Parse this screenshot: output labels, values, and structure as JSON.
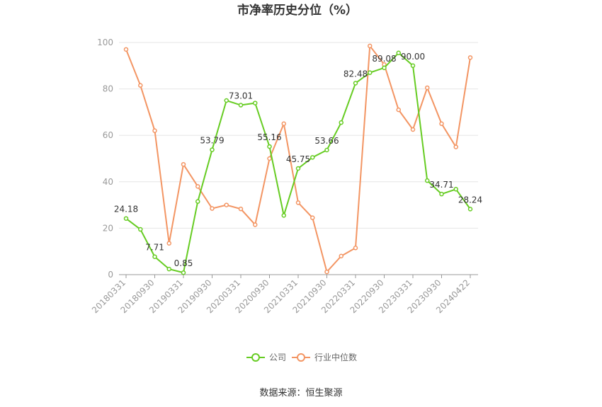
{
  "chart_data": {
    "type": "line",
    "title": "市净率历史分位（%）",
    "ylim": [
      0,
      100
    ],
    "yticks": [
      0,
      20,
      40,
      60,
      80,
      100
    ],
    "x": [
      "20180331",
      "20180630",
      "20180930",
      "20181231",
      "20190331",
      "20190630",
      "20190930",
      "20191231",
      "20200331",
      "20200630",
      "20200930",
      "20201231",
      "20210331",
      "20210630",
      "20210930",
      "20211231",
      "20220331",
      "20220630",
      "20220930",
      "20221231",
      "20230331",
      "20230630",
      "20230930",
      "20231231",
      "20240422"
    ],
    "xtick_labels": [
      "20180331",
      "20180930",
      "20190331",
      "20190930",
      "20200331",
      "20200930",
      "20210331",
      "20210930",
      "20220331",
      "20220930",
      "20230331",
      "20230930",
      "20240422"
    ],
    "series": [
      {
        "name": "公司",
        "color": "#66cc22",
        "values": [
          24.18,
          19.5,
          7.71,
          2.4,
          0.85,
          31.5,
          53.79,
          75.0,
          73.01,
          73.9,
          55.16,
          25.5,
          45.75,
          50.5,
          53.66,
          65.5,
          82.48,
          87.0,
          89.08,
          95.5,
          90.0,
          40.5,
          34.71,
          36.8,
          28.24
        ]
      },
      {
        "name": "行业中位数",
        "color": "#f39563",
        "values": [
          97.0,
          81.5,
          62.0,
          13.5,
          47.5,
          38.0,
          28.5,
          30.0,
          28.3,
          21.5,
          50.0,
          65.0,
          31.0,
          24.5,
          1.2,
          8.0,
          11.5,
          98.5,
          90.5,
          71.0,
          62.5,
          80.5,
          65.0,
          55.0,
          93.5
        ]
      }
    ],
    "data_labels": [
      {
        "index": 0,
        "text": "24.18"
      },
      {
        "index": 2,
        "text": "7.71"
      },
      {
        "index": 4,
        "text": "0.85"
      },
      {
        "index": 6,
        "text": "53.79"
      },
      {
        "index": 8,
        "text": "73.01"
      },
      {
        "index": 10,
        "text": "55.16"
      },
      {
        "index": 12,
        "text": "45.75"
      },
      {
        "index": 14,
        "text": "53.66"
      },
      {
        "index": 16,
        "text": "82.48"
      },
      {
        "index": 18,
        "text": "89.08"
      },
      {
        "index": 20,
        "text": "90.00"
      },
      {
        "index": 22,
        "text": "34.71"
      },
      {
        "index": 24,
        "text": "28.24"
      }
    ],
    "legend": "bottom-center",
    "grid": true
  },
  "footer": {
    "source": "数据来源：恒生聚源"
  }
}
